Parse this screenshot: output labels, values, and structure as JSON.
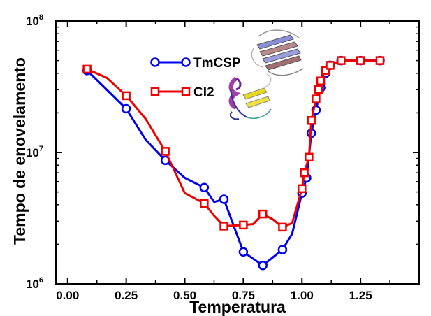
{
  "chart_data": {
    "type": "line",
    "title": "",
    "xlabel": "Temperatura",
    "ylabel": "Tempo de enovelamento",
    "xlim": [
      -0.05,
      1.5
    ],
    "ylim": [
      1000000,
      100000000
    ],
    "yscale": "log",
    "grid": false,
    "legend_position": "top-center",
    "x_ticks": [
      {
        "value": 0.0,
        "label": "0.00"
      },
      {
        "value": 0.25,
        "label": "0.25"
      },
      {
        "value": 0.5,
        "label": "0.50"
      },
      {
        "value": 0.75,
        "label": "0.75"
      },
      {
        "value": 1.0,
        "label": "1.00"
      },
      {
        "value": 1.25,
        "label": "1.25"
      }
    ],
    "y_ticks": [
      {
        "value": 1000000,
        "base": "10",
        "exp": "6"
      },
      {
        "value": 10000000,
        "base": "10",
        "exp": "7"
      },
      {
        "value": 100000000,
        "base": "10",
        "exp": "8"
      }
    ],
    "series": [
      {
        "name": "TmCSP",
        "color": "#0000ee",
        "marker": "circle",
        "line_x": [
          0.083,
          0.167,
          0.25,
          0.333,
          0.417,
          0.5,
          0.583,
          0.625,
          0.667,
          0.75,
          0.833,
          0.917,
          0.958,
          1.0,
          1.02,
          1.04,
          1.06,
          1.08,
          1.1,
          1.12,
          1.167,
          1.25,
          1.333
        ],
        "line_y": [
          42000000,
          30000000,
          21500000,
          12500000,
          8700000,
          6400000,
          5400000,
          4200000,
          4400000,
          1750000,
          1380000,
          1820000,
          2400000,
          4900000,
          6400000,
          14000000,
          21000000,
          31000000,
          40000000,
          46000000,
          50000000,
          50000000,
          50000000
        ],
        "marker_x": [
          0.083,
          0.25,
          0.417,
          0.583,
          0.667,
          0.75,
          0.833,
          0.917,
          1.0,
          1.02,
          1.04,
          1.06,
          1.08,
          1.1,
          1.12,
          1.167,
          1.25,
          1.333
        ],
        "marker_y": [
          42000000,
          21500000,
          8700000,
          5400000,
          4400000,
          1750000,
          1380000,
          1820000,
          4900000,
          6400000,
          14000000,
          21000000,
          31000000,
          40000000,
          46000000,
          50000000,
          50000000,
          50000000
        ]
      },
      {
        "name": "CI2",
        "color": "#ee0000",
        "marker": "square",
        "line_x": [
          0.083,
          0.167,
          0.25,
          0.333,
          0.417,
          0.5,
          0.583,
          0.625,
          0.667,
          0.75,
          0.792,
          0.833,
          0.875,
          0.917,
          0.958,
          1.0,
          1.01,
          1.03,
          1.04,
          1.06,
          1.07,
          1.08,
          1.1,
          1.12,
          1.167,
          1.25,
          1.333
        ],
        "line_y": [
          43000000,
          37000000,
          27000000,
          18000000,
          10200000,
          4900000,
          4100000,
          3300000,
          2750000,
          2800000,
          2850000,
          3400000,
          3100000,
          2700000,
          2900000,
          5300000,
          7000000,
          9200000,
          17500000,
          25500000,
          30000000,
          35000000,
          42000000,
          46000000,
          50000000,
          50000000,
          50000000
        ],
        "marker_x": [
          0.083,
          0.25,
          0.417,
          0.583,
          0.667,
          0.75,
          0.833,
          0.917,
          1.0,
          1.01,
          1.03,
          1.04,
          1.06,
          1.07,
          1.08,
          1.1,
          1.12,
          1.167,
          1.25,
          1.333
        ],
        "marker_y": [
          43000000,
          27000000,
          10200000,
          4100000,
          2750000,
          2800000,
          3400000,
          2700000,
          5300000,
          7000000,
          9200000,
          17500000,
          25500000,
          30000000,
          35000000,
          42000000,
          46000000,
          50000000,
          50000000,
          50000000
        ]
      }
    ],
    "insets": [
      "protein-ribbon-tmcsp",
      "protein-ribbon-ci2"
    ]
  }
}
